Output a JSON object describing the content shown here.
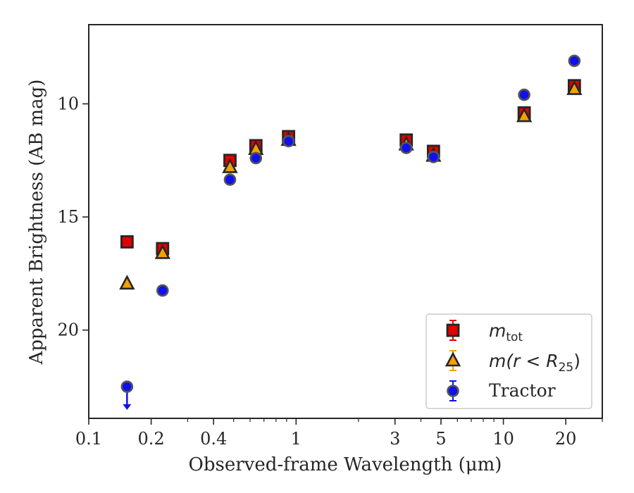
{
  "chart_data": {
    "type": "scatter",
    "xlabel": "Observed-frame Wavelength (μm)",
    "ylabel": "Apparent Brightness (AB mag)",
    "x_scale": "log",
    "xlim": [
      0.1,
      30
    ],
    "ylim": [
      23.9,
      6.5
    ],
    "y_inverted": true,
    "x_ticks": [
      0.1,
      0.2,
      0.4,
      1,
      3,
      5,
      10,
      20
    ],
    "x_tick_labels": [
      "0.1",
      "0.2",
      "0.4",
      "1",
      "3",
      "5",
      "10",
      "20"
    ],
    "y_ticks": [
      10,
      15,
      20
    ],
    "y_tick_labels": [
      "10",
      "15",
      "20"
    ],
    "grid": false,
    "legend_position": "lower-right",
    "series": [
      {
        "name": "m_tot",
        "legend_main": "m",
        "legend_sub": "tot",
        "marker": "square",
        "color": "#e00000",
        "points": [
          {
            "x": 0.153,
            "y": 16.1
          },
          {
            "x": 0.227,
            "y": 16.4
          },
          {
            "x": 0.48,
            "y": 12.5
          },
          {
            "x": 0.64,
            "y": 11.85
          },
          {
            "x": 0.92,
            "y": 11.45
          },
          {
            "x": 3.4,
            "y": 11.6
          },
          {
            "x": 4.6,
            "y": 12.1
          },
          {
            "x": 12.6,
            "y": 10.4
          },
          {
            "x": 22.0,
            "y": 9.2
          }
        ]
      },
      {
        "name": "m(r < R_25)",
        "legend_main": "m(r < R",
        "legend_sub": "25",
        "legend_tail": ")",
        "marker": "triangle",
        "color": "#f5a000",
        "points": [
          {
            "x": 0.153,
            "y": 17.95
          },
          {
            "x": 0.227,
            "y": 16.6
          },
          {
            "x": 0.48,
            "y": 12.8
          },
          {
            "x": 0.64,
            "y": 12.0
          },
          {
            "x": 0.92,
            "y": 11.6
          },
          {
            "x": 3.4,
            "y": 11.8
          },
          {
            "x": 4.6,
            "y": 12.3
          },
          {
            "x": 12.6,
            "y": 10.55
          },
          {
            "x": 22.0,
            "y": 9.35
          }
        ]
      },
      {
        "name": "Tractor",
        "marker": "circle",
        "color": "#1010ee",
        "points": [
          {
            "x": 0.153,
            "y": 22.5,
            "upper_limit": true
          },
          {
            "x": 0.227,
            "y": 18.25
          },
          {
            "x": 0.48,
            "y": 13.35
          },
          {
            "x": 0.64,
            "y": 12.4
          },
          {
            "x": 0.92,
            "y": 11.65
          },
          {
            "x": 3.4,
            "y": 11.95
          },
          {
            "x": 4.6,
            "y": 12.35
          },
          {
            "x": 12.6,
            "y": 9.6
          },
          {
            "x": 22.0,
            "y": 8.1
          }
        ]
      }
    ]
  }
}
